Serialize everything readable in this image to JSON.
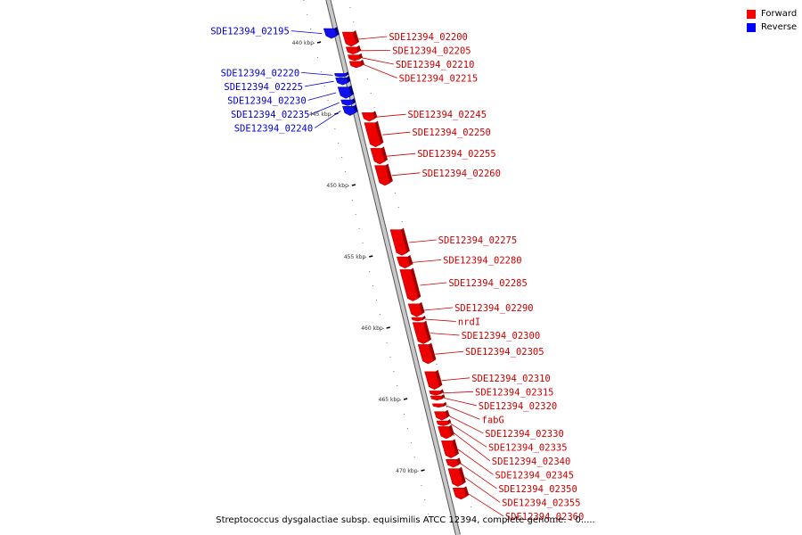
{
  "caption": "Streptococcus dysgalactiae subsp. equisimilis ATCC 12394, complete genome. - 0.....",
  "legend": [
    {
      "label": "Forward",
      "color": "#ff0000"
    },
    {
      "label": "Reverse",
      "color": "#0000ff"
    }
  ],
  "colors": {
    "forward": "#ee0000",
    "forward_label": "#cc0000",
    "reverse": "#1111ee",
    "reverse_label": "#0000cc",
    "backbone": "#c8c8c8"
  },
  "ruler_unit": "kbp",
  "ruler": [
    {
      "label": "440 kbp",
      "kbp": 440
    },
    {
      "label": "445 kbp",
      "kbp": 445
    },
    {
      "label": "450 kbp",
      "kbp": 450
    },
    {
      "label": "455 kbp",
      "kbp": 455
    },
    {
      "label": "460 kbp",
      "kbp": 460
    },
    {
      "label": "465 kbp",
      "kbp": 465
    },
    {
      "label": "470 kbp",
      "kbp": 470
    }
  ],
  "genes": [
    {
      "name": "SDE12394_02195",
      "strand": "reverse",
      "start": 439.0,
      "end": 439.7
    },
    {
      "name": "SDE12394_02200",
      "strand": "forward",
      "start": 439.25,
      "end": 440.25
    },
    {
      "name": "SDE12394_02205",
      "strand": "forward",
      "start": 440.3,
      "end": 440.8
    },
    {
      "name": "SDE12394_02210",
      "strand": "forward",
      "start": 440.85,
      "end": 441.25
    },
    {
      "name": "SDE12394_02215",
      "strand": "forward",
      "start": 441.3,
      "end": 441.75
    },
    {
      "name": "SDE12394_02220",
      "strand": "reverse",
      "start": 442.15,
      "end": 442.4
    },
    {
      "name": "SDE12394_02225",
      "strand": "reverse",
      "start": 442.45,
      "end": 442.95
    },
    {
      "name": "SDE12394_02230",
      "strand": "reverse",
      "start": 443.1,
      "end": 443.9
    },
    {
      "name": "SDE12394_02235",
      "strand": "reverse",
      "start": 444.0,
      "end": 444.4
    },
    {
      "name": "SDE12394_02240",
      "strand": "reverse",
      "start": 444.45,
      "end": 445.1
    },
    {
      "name": "SDE12394_02245",
      "strand": "forward",
      "start": 444.9,
      "end": 445.5
    },
    {
      "name": "SDE12394_02250",
      "strand": "forward",
      "start": 445.6,
      "end": 447.3
    },
    {
      "name": "SDE12394_02255",
      "strand": "forward",
      "start": 447.4,
      "end": 448.5
    },
    {
      "name": "SDE12394_02260",
      "strand": "forward",
      "start": 448.6,
      "end": 450.0
    },
    {
      "name": "SDE12394_02275",
      "strand": "forward",
      "start": 453.1,
      "end": 454.9
    },
    {
      "name": "SDE12394_02280",
      "strand": "forward",
      "start": 455.0,
      "end": 455.8
    },
    {
      "name": "SDE12394_02285",
      "strand": "forward",
      "start": 455.9,
      "end": 458.1
    },
    {
      "name": "SDE12394_02290",
      "strand": "forward",
      "start": 458.3,
      "end": 459.2
    },
    {
      "name": "nrdI",
      "strand": "forward",
      "start": 459.25,
      "end": 459.5
    },
    {
      "name": "SDE12394_02300",
      "strand": "forward",
      "start": 459.6,
      "end": 461.1
    },
    {
      "name": "SDE12394_02305",
      "strand": "forward",
      "start": 461.15,
      "end": 462.5
    },
    {
      "name": "SDE12394_02310",
      "strand": "forward",
      "start": 463.05,
      "end": 464.3
    },
    {
      "name": "SDE12394_02315",
      "strand": "forward",
      "start": 464.4,
      "end": 464.7
    },
    {
      "name": "SDE12394_02320",
      "strand": "forward",
      "start": 464.75,
      "end": 465.05
    },
    {
      "name": "fabG",
      "strand": "forward",
      "start": 465.3,
      "end": 465.55
    },
    {
      "name": "SDE12394_02330",
      "strand": "forward",
      "start": 465.85,
      "end": 466.45
    },
    {
      "name": "SDE12394_02335",
      "strand": "forward",
      "start": 466.5,
      "end": 466.85
    },
    {
      "name": "SDE12394_02340",
      "strand": "forward",
      "start": 466.9,
      "end": 467.75
    },
    {
      "name": "SDE12394_02345",
      "strand": "forward",
      "start": 467.9,
      "end": 469.1
    },
    {
      "name": "SDE12394_02350",
      "strand": "forward",
      "start": 469.2,
      "end": 469.75
    },
    {
      "name": "SDE12394_02355",
      "strand": "forward",
      "start": 469.85,
      "end": 471.1
    },
    {
      "name": "SDE12394_02360",
      "strand": "forward",
      "start": 471.2,
      "end": 472.0
    }
  ]
}
